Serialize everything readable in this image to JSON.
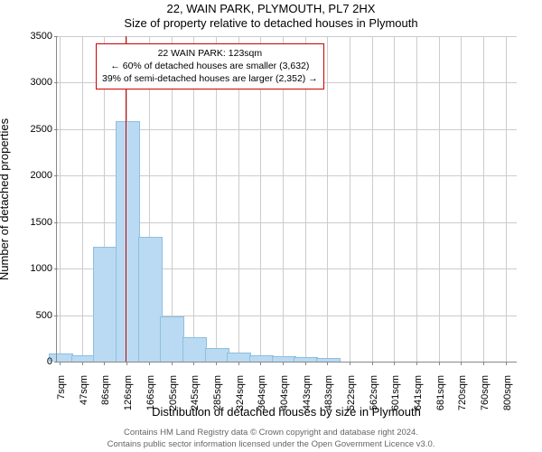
{
  "header": {
    "title": "22, WAIN PARK, PLYMOUTH, PL7 2HX",
    "subtitle": "Size of property relative to detached houses in Plymouth"
  },
  "chart": {
    "type": "bar-histogram",
    "background_color": "#ffffff",
    "grid_color": "#cccccc",
    "axis_color": "#888888",
    "bar_color": "#b9daf2",
    "bar_border_color": "#8fbfe0",
    "marker_color": "#cc0000",
    "marker_value_x": 123,
    "ylabel": "Number of detached properties",
    "xlabel": "Distribution of detached houses by size in Plymouth",
    "ylim": [
      0,
      3500
    ],
    "ytick_step": 500,
    "yticks": [
      0,
      500,
      1000,
      1500,
      2000,
      2500,
      3000,
      3500
    ],
    "xlim": [
      0,
      820
    ],
    "xticks": [
      7,
      47,
      86,
      126,
      166,
      205,
      245,
      285,
      324,
      364,
      404,
      443,
      483,
      522,
      562,
      601,
      641,
      681,
      720,
      760,
      800
    ],
    "xtick_unit": "sqm",
    "bar_halfwidth": 20,
    "bars": [
      {
        "x": 7,
        "y": 80
      },
      {
        "x": 47,
        "y": 60
      },
      {
        "x": 86,
        "y": 1230
      },
      {
        "x": 126,
        "y": 2580
      },
      {
        "x": 166,
        "y": 1330
      },
      {
        "x": 205,
        "y": 480
      },
      {
        "x": 245,
        "y": 250
      },
      {
        "x": 285,
        "y": 140
      },
      {
        "x": 324,
        "y": 90
      },
      {
        "x": 364,
        "y": 60
      },
      {
        "x": 404,
        "y": 50
      },
      {
        "x": 443,
        "y": 40
      },
      {
        "x": 483,
        "y": 30
      },
      {
        "x": 522,
        "y": 0
      },
      {
        "x": 562,
        "y": 0
      },
      {
        "x": 601,
        "y": 0
      },
      {
        "x": 641,
        "y": 0
      },
      {
        "x": 681,
        "y": 0
      },
      {
        "x": 720,
        "y": 0
      },
      {
        "x": 760,
        "y": 0
      },
      {
        "x": 800,
        "y": 0
      }
    ],
    "label_fontsize": 13,
    "tick_fontsize": 11
  },
  "note": {
    "line1": "22 WAIN PARK: 123sqm",
    "line2": "← 60% of detached houses are smaller (3,632)",
    "line3": "39% of semi-detached houses are larger (2,352) →",
    "border_color": "#cc0000",
    "background_color": "#ffffff",
    "fontsize": 10.5
  },
  "footer": {
    "line1": "Contains HM Land Registry data © Crown copyright and database right 2024.",
    "line2": "Contains public sector information licensed under the Open Government Licence v3.0.",
    "color": "#666666"
  }
}
